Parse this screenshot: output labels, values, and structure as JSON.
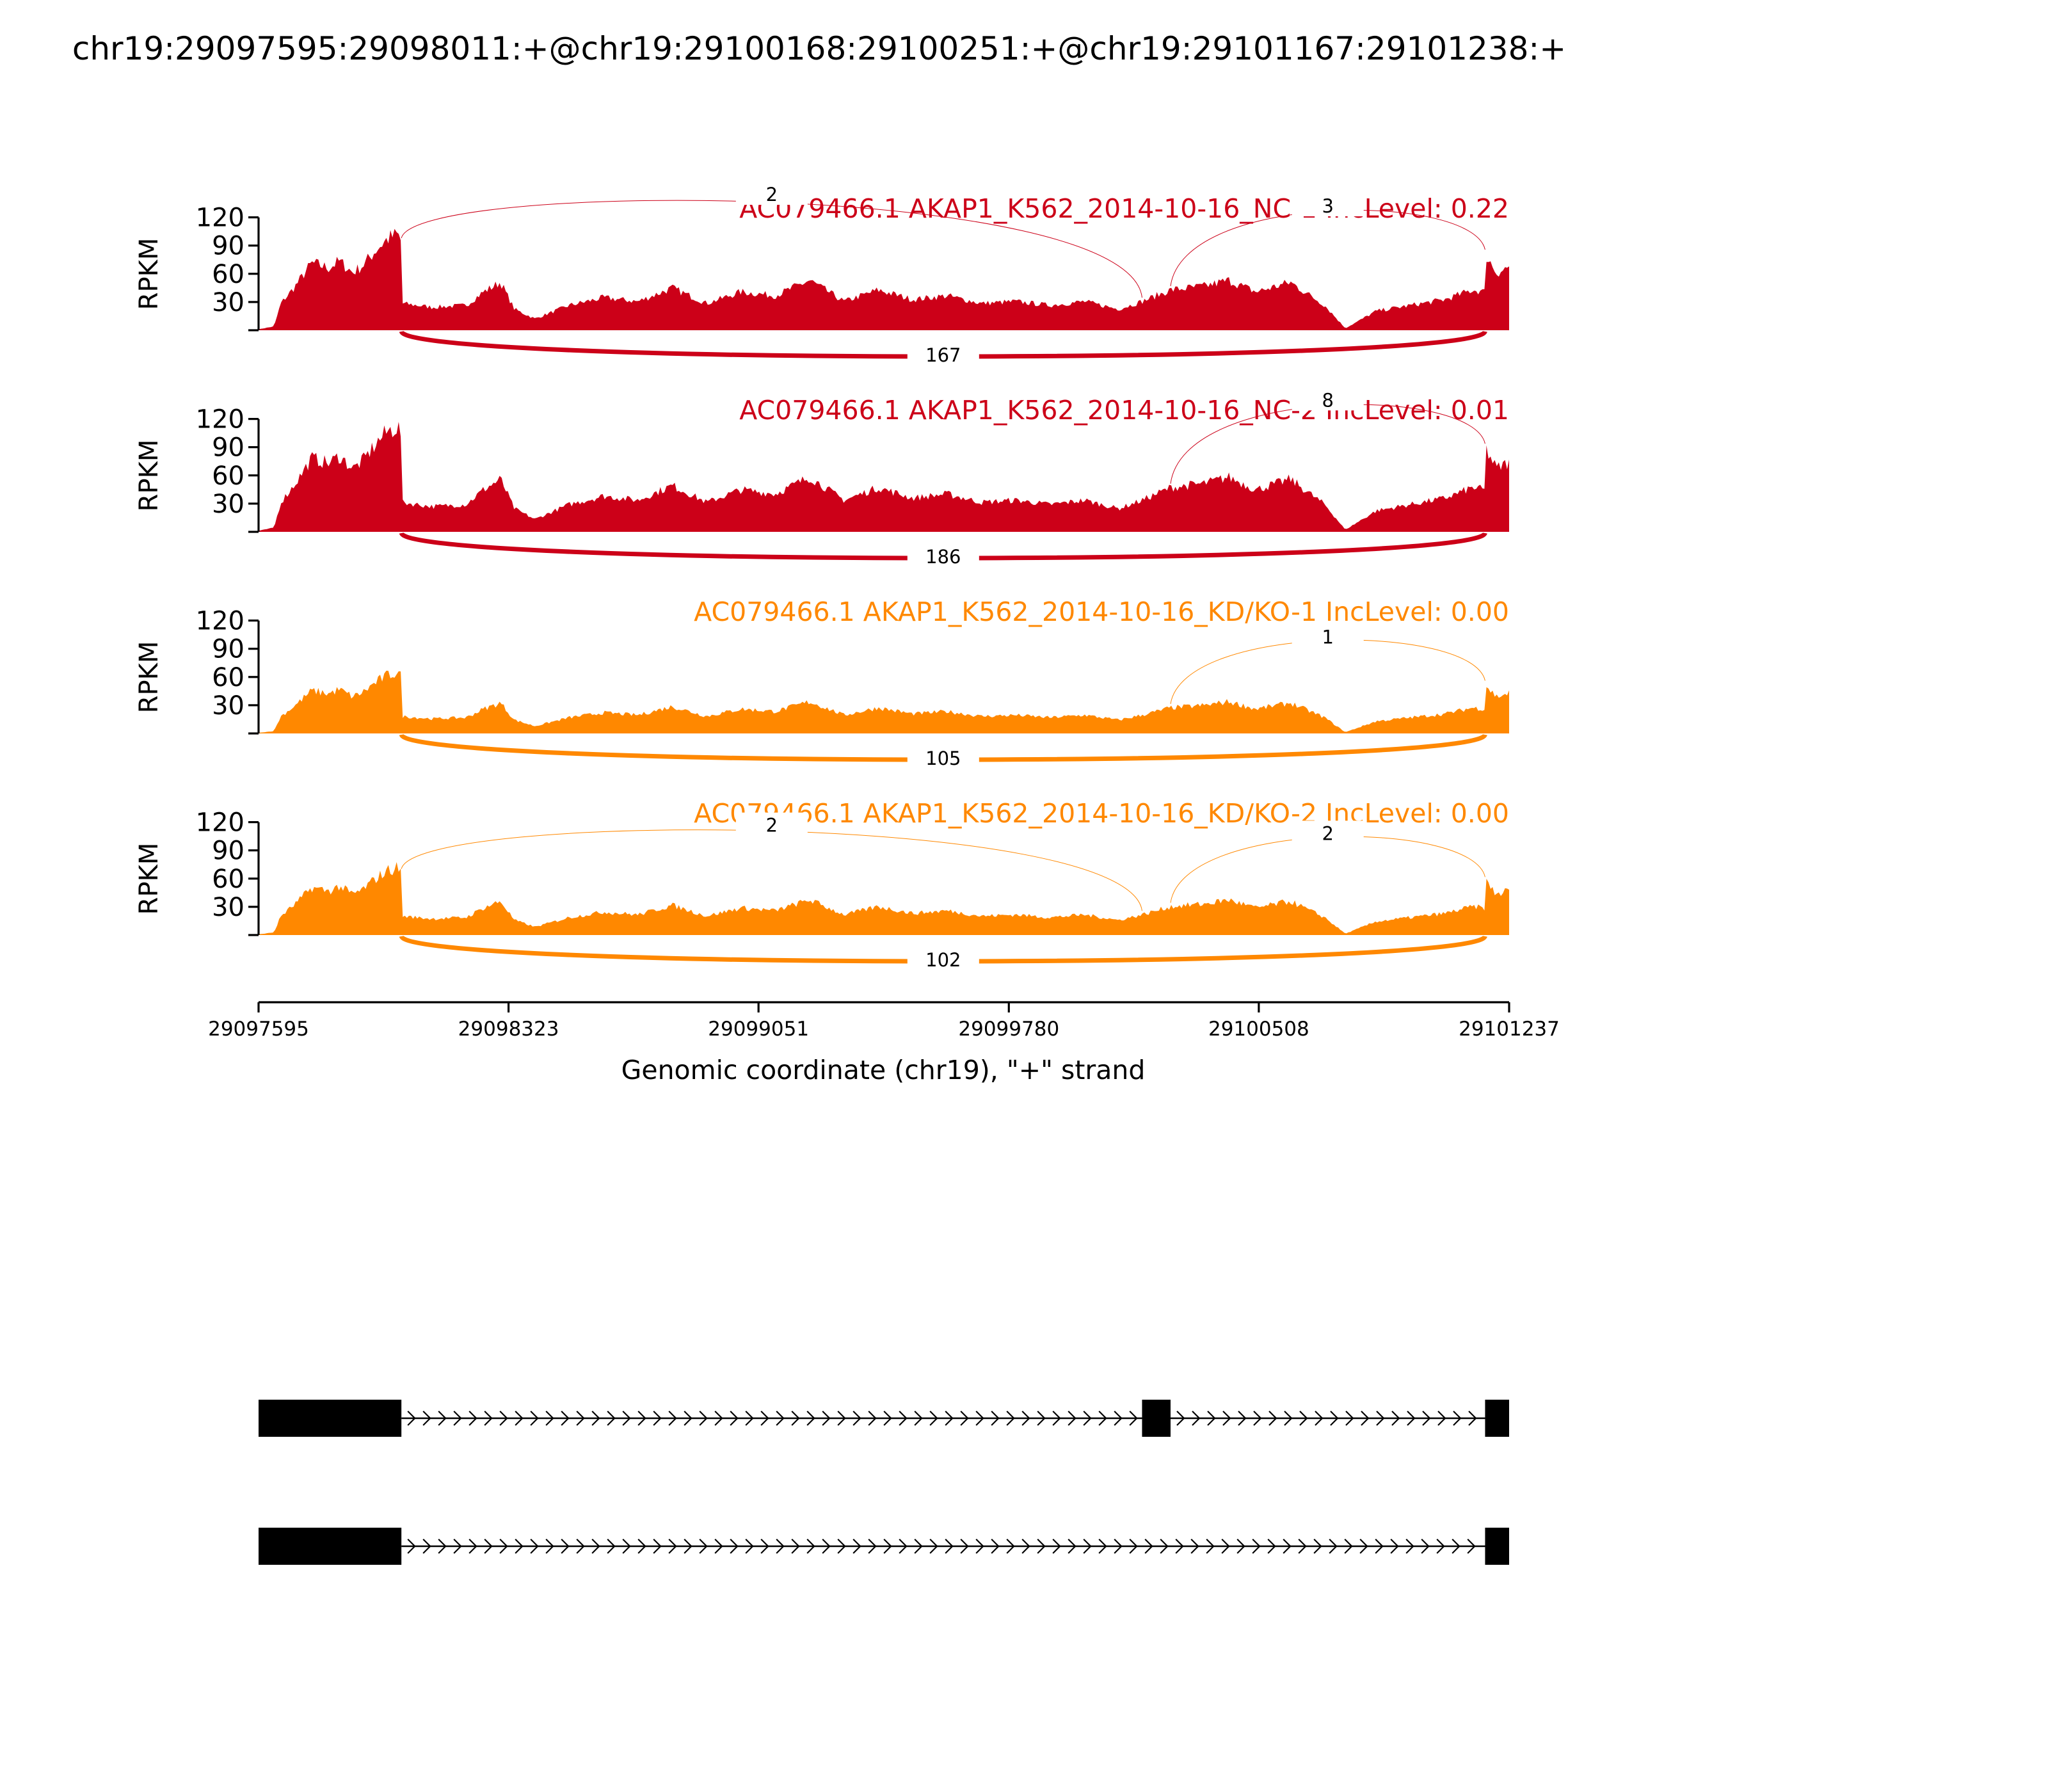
{
  "figure": {
    "title": "chr19:29097595:29098011:+@chr19:29100168:29100251:+@chr19:29101167:29101238:+"
  },
  "chart_data": {
    "type": "area",
    "title": "chr19:29097595:29098011:+@chr19:29100168:29100251:+@chr19:29101167:29101238:+",
    "xlabel": "Genomic coordinate (chr19), \"+\" strand",
    "ylabel": "RPKM",
    "xlim": [
      29097595,
      29101237
    ],
    "ylim": [
      0,
      120
    ],
    "x_ticks": [
      29097595,
      29098323,
      29099051,
      29099780,
      29100508,
      29101237
    ],
    "y_ticks": [
      30,
      60,
      90,
      120
    ],
    "colors": {
      "NC": "#cc0018",
      "KD": "#ff8800"
    },
    "tracks": [
      {
        "label": "AC079466.1 AKAP1_K562_2014-10-16_NC-1 IncLevel: 0.22",
        "color": "#cc0018",
        "peak": 102,
        "junctions": [
          {
            "from": 29098011,
            "to": 29100168,
            "count": 2,
            "side": "above"
          },
          {
            "from": 29100251,
            "to": 29101167,
            "count": 3,
            "side": "above"
          },
          {
            "from": 29098011,
            "to": 29101167,
            "count": 167,
            "side": "below"
          }
        ]
      },
      {
        "label": "AC079466.1 AKAP1_K562_2014-10-16_NC-2 IncLevel: 0.01",
        "color": "#cc0018",
        "peak": 112,
        "junctions": [
          {
            "from": 29100251,
            "to": 29101167,
            "count": 8,
            "side": "above"
          },
          {
            "from": 29098011,
            "to": 29101167,
            "count": 186,
            "side": "below"
          }
        ]
      },
      {
        "label": "AC079466.1 AKAP1_K562_2014-10-16_KD/KO-1 IncLevel: 0.00",
        "color": "#ff8800",
        "peak": 65,
        "junctions": [
          {
            "from": 29100251,
            "to": 29101167,
            "count": 1,
            "side": "above"
          },
          {
            "from": 29098011,
            "to": 29101167,
            "count": 105,
            "side": "below"
          }
        ]
      },
      {
        "label": "AC079466.1 AKAP1_K562_2014-10-16_KD/KO-2 IncLevel: 0.00",
        "color": "#ff8800",
        "peak": 72,
        "junctions": [
          {
            "from": 29098011,
            "to": 29100168,
            "count": 2,
            "side": "above"
          },
          {
            "from": 29100251,
            "to": 29101167,
            "count": 2,
            "side": "above"
          },
          {
            "from": 29098011,
            "to": 29101167,
            "count": 102,
            "side": "below"
          }
        ]
      }
    ],
    "coverage_profile": [
      [
        29097595,
        1
      ],
      [
        29097640,
        4
      ],
      [
        29097660,
        28
      ],
      [
        29097700,
        45
      ],
      [
        29097750,
        70
      ],
      [
        29097800,
        65
      ],
      [
        29097830,
        72
      ],
      [
        29097870,
        60
      ],
      [
        29097900,
        68
      ],
      [
        29097940,
        85
      ],
      [
        29097970,
        95
      ],
      [
        29098000,
        100
      ],
      [
        29098011,
        92
      ],
      [
        29098012,
        28
      ],
      [
        29098100,
        24
      ],
      [
        29098200,
        26
      ],
      [
        29098250,
        40
      ],
      [
        29098300,
        50
      ],
      [
        29098340,
        22
      ],
      [
        29098400,
        12
      ],
      [
        29098500,
        26
      ],
      [
        29098600,
        34
      ],
      [
        29098700,
        30
      ],
      [
        29098800,
        44
      ],
      [
        29098900,
        28
      ],
      [
        29099000,
        40
      ],
      [
        29099100,
        36
      ],
      [
        29099200,
        52
      ],
      [
        29099300,
        30
      ],
      [
        29099400,
        42
      ],
      [
        29099500,
        32
      ],
      [
        29099600,
        36
      ],
      [
        29099700,
        28
      ],
      [
        29099800,
        30
      ],
      [
        29099900,
        26
      ],
      [
        29100000,
        30
      ],
      [
        29100100,
        22
      ],
      [
        29100168,
        30
      ],
      [
        29100251,
        42
      ],
      [
        29100350,
        46
      ],
      [
        29100420,
        52
      ],
      [
        29100500,
        40
      ],
      [
        29100600,
        50
      ],
      [
        29100700,
        26
      ],
      [
        29100760,
        2
      ],
      [
        29100850,
        20
      ],
      [
        29100950,
        26
      ],
      [
        29101050,
        32
      ],
      [
        29101130,
        42
      ],
      [
        29101166,
        40
      ],
      [
        29101167,
        80
      ],
      [
        29101200,
        60
      ],
      [
        29101237,
        66
      ]
    ],
    "gene_models": [
      {
        "exons": [
          [
            29097595,
            29098011
          ],
          [
            29100168,
            29100251
          ],
          [
            29101167,
            29101237
          ]
        ],
        "strand": "+"
      },
      {
        "exons": [
          [
            29097595,
            29098011
          ],
          [
            29101167,
            29101237
          ]
        ],
        "strand": "+"
      }
    ]
  }
}
